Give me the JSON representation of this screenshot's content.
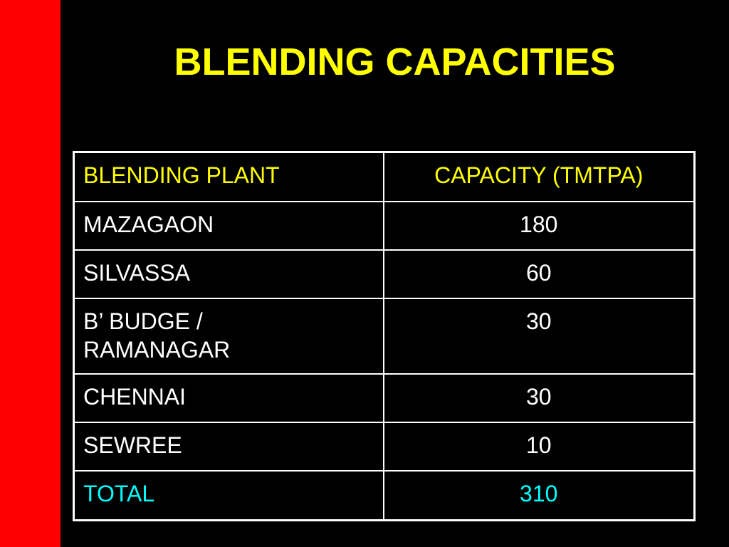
{
  "slide": {
    "title": "BLENDING CAPACITIES"
  },
  "colors": {
    "background": "#000000",
    "red_bar": "#ff0000",
    "title": "#ffff00",
    "header_text": "#ffff00",
    "body_text": "#ffffff",
    "total_text": "#00ffff",
    "border": "#ffffff"
  },
  "table": {
    "headers": [
      "BLENDING PLANT",
      "CAPACITY (TMTPA)"
    ],
    "rows": [
      {
        "plant": "MAZAGAON",
        "capacity": "180"
      },
      {
        "plant": "SILVASSA",
        "capacity": "60"
      },
      {
        "plant_line1": "B’ BUDGE /",
        "plant_line2": "RAMANAGAR",
        "capacity": "30"
      },
      {
        "plant": "CHENNAI",
        "capacity": "30"
      },
      {
        "plant": "SEWREE",
        "capacity": "10"
      }
    ],
    "total": {
      "label": "TOTAL",
      "capacity": "310"
    }
  }
}
